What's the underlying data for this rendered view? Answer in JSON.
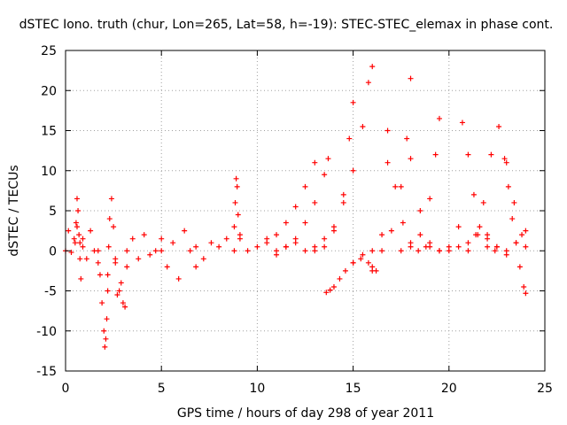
{
  "chart_data": {
    "type": "scatter",
    "title": "dSTEC Iono. truth (chur, Lon=265, Lat=58, h=-19): STEC-STEC_elemax in phase cont.",
    "xlabel": "GPS time / hours of day 298 of year 2011",
    "ylabel": "dSTEC  / TECUs",
    "xlim": [
      0,
      25
    ],
    "ylim": [
      -15,
      25
    ],
    "xticks": [
      0,
      5,
      10,
      15,
      20,
      25
    ],
    "yticks": [
      -15,
      -10,
      -5,
      0,
      5,
      10,
      15,
      20,
      25
    ],
    "grid": true,
    "marker": "+",
    "color": "#ff0000",
    "series": [
      {
        "x": [
          0.0,
          0.15,
          0.3,
          0.45,
          0.6,
          0.75,
          0.9
        ],
        "y": [
          0.0,
          2.5,
          -0.2,
          1.5,
          3.0,
          1.0,
          0.5
        ]
      },
      {
        "x": [
          0.5,
          0.55,
          0.6,
          0.65,
          0.7,
          0.75,
          0.8
        ],
        "y": [
          1.0,
          3.5,
          6.5,
          5.0,
          2.0,
          -1.0,
          -3.5
        ]
      },
      {
        "x": [
          0.9,
          1.1,
          1.3,
          1.5,
          1.7
        ],
        "y": [
          1.5,
          -1.0,
          2.5,
          0.0,
          -1.5
        ]
      },
      {
        "x": [
          1.7,
          1.8,
          1.9,
          2.0,
          2.05,
          2.1,
          2.15,
          2.2
        ],
        "y": [
          0.0,
          -3.0,
          -6.5,
          -10.0,
          -12.0,
          -11.0,
          -8.5,
          -5.0
        ]
      },
      {
        "x": [
          2.2,
          2.25,
          2.3,
          2.4,
          2.5,
          2.6
        ],
        "y": [
          -3.0,
          0.5,
          4.0,
          6.5,
          3.0,
          -1.0
        ]
      },
      {
        "x": [
          2.6,
          2.7,
          2.8,
          2.9,
          3.0,
          3.1,
          3.2
        ],
        "y": [
          -1.5,
          -5.5,
          -5.0,
          -4.0,
          -6.5,
          -7.0,
          -2.0
        ]
      },
      {
        "x": [
          3.2,
          3.5,
          3.8,
          4.1,
          4.4,
          4.7,
          5.0
        ],
        "y": [
          0.0,
          1.5,
          -1.0,
          2.0,
          -0.5,
          0.0,
          1.5
        ]
      },
      {
        "x": [
          5.0,
          5.3,
          5.6,
          5.9,
          6.2,
          6.5,
          6.8
        ],
        "y": [
          0.0,
          -2.0,
          1.0,
          -3.5,
          2.5,
          0.0,
          -2.0
        ]
      },
      {
        "x": [
          6.8,
          7.2,
          7.6,
          8.0,
          8.4,
          8.8
        ],
        "y": [
          0.5,
          -1.0,
          1.0,
          0.5,
          1.5,
          0.0
        ]
      },
      {
        "x": [
          8.8,
          8.85,
          8.9,
          8.95,
          9.0,
          9.1
        ],
        "y": [
          3.0,
          6.0,
          9.0,
          8.0,
          4.5,
          2.0
        ]
      },
      {
        "x": [
          9.1,
          9.5,
          10.0,
          10.5,
          11.0,
          11.5,
          12.0
        ],
        "y": [
          1.5,
          0.0,
          0.5,
          1.5,
          0.0,
          0.5,
          1.0
        ]
      },
      {
        "x": [
          11.0,
          11.5,
          12.0,
          12.5,
          13.0,
          13.5,
          13.7
        ],
        "y": [
          -0.5,
          0.5,
          1.5,
          3.5,
          6.0,
          9.5,
          11.5
        ]
      },
      {
        "x": [
          10.5,
          11.0,
          11.5,
          12.0,
          12.5,
          13.0
        ],
        "y": [
          1.0,
          2.0,
          3.5,
          5.5,
          8.0,
          11.0
        ]
      },
      {
        "x": [
          13.6,
          13.8,
          14.0,
          14.3,
          14.6,
          15.0,
          15.4,
          15.8,
          16.0,
          16.2
        ],
        "y": [
          -5.2,
          -4.9,
          -4.5,
          -3.5,
          -2.5,
          -1.5,
          -1.0,
          -1.5,
          -2.0,
          -2.5
        ]
      },
      {
        "x": [
          12.5,
          13.0,
          13.5,
          14.0,
          14.5,
          15.0,
          15.5,
          15.8,
          16.0
        ],
        "y": [
          0.0,
          0.5,
          1.5,
          3.0,
          6.0,
          10.0,
          15.5,
          21.0,
          23.0
        ]
      },
      {
        "x": [
          13.0,
          13.5,
          14.0,
          14.5,
          14.8,
          15.0
        ],
        "y": [
          0.0,
          0.5,
          2.5,
          7.0,
          14.0,
          18.5
        ]
      },
      {
        "x": [
          15.0,
          15.5,
          16.0,
          16.5,
          16.8
        ],
        "y": [
          -1.5,
          -0.5,
          0.0,
          2.0,
          11.0
        ]
      },
      {
        "x": [
          16.0,
          16.5,
          17.0,
          17.5,
          17.8,
          18.0
        ],
        "y": [
          -2.5,
          0.0,
          2.5,
          8.0,
          14.0,
          21.5
        ]
      },
      {
        "x": [
          16.8,
          17.2,
          17.6,
          18.0,
          18.4,
          18.8
        ],
        "y": [
          15.0,
          8.0,
          3.5,
          1.0,
          0.0,
          0.5
        ]
      },
      {
        "x": [
          17.5,
          18.0,
          18.5,
          19.0,
          19.3,
          19.5
        ],
        "y": [
          0.0,
          0.5,
          2.0,
          6.5,
          12.0,
          16.5
        ]
      },
      {
        "x": [
          18.0,
          18.5,
          19.0,
          19.5,
          20.0,
          20.5
        ],
        "y": [
          11.5,
          5.0,
          1.0,
          0.0,
          0.5,
          3.0
        ]
      },
      {
        "x": [
          20.7,
          21.0,
          21.3,
          21.6,
          22.0,
          22.4
        ],
        "y": [
          16.0,
          12.0,
          7.0,
          3.0,
          0.5,
          0.0
        ]
      },
      {
        "x": [
          21.0,
          21.4,
          21.8,
          22.2,
          22.6,
          23.0,
          23.4,
          23.8,
          24.0
        ],
        "y": [
          0.0,
          2.0,
          6.0,
          12.0,
          15.5,
          11.0,
          6.0,
          2.0,
          0.5
        ]
      },
      {
        "x": [
          19.0,
          19.5,
          20.0,
          20.5,
          21.0,
          21.5,
          22.0,
          22.5,
          23.0
        ],
        "y": [
          0.5,
          0.0,
          0.0,
          0.5,
          1.0,
          2.0,
          1.5,
          0.5,
          0.0
        ]
      },
      {
        "x": [
          22.9,
          23.1,
          23.3,
          23.5,
          23.7,
          23.9,
          24.0
        ],
        "y": [
          11.5,
          8.0,
          4.0,
          1.0,
          -2.0,
          -4.5,
          -5.3
        ]
      },
      {
        "x": [
          22.0,
          22.5,
          23.0,
          23.5,
          24.0
        ],
        "y": [
          2.0,
          0.5,
          -0.5,
          1.0,
          2.5
        ]
      }
    ]
  }
}
